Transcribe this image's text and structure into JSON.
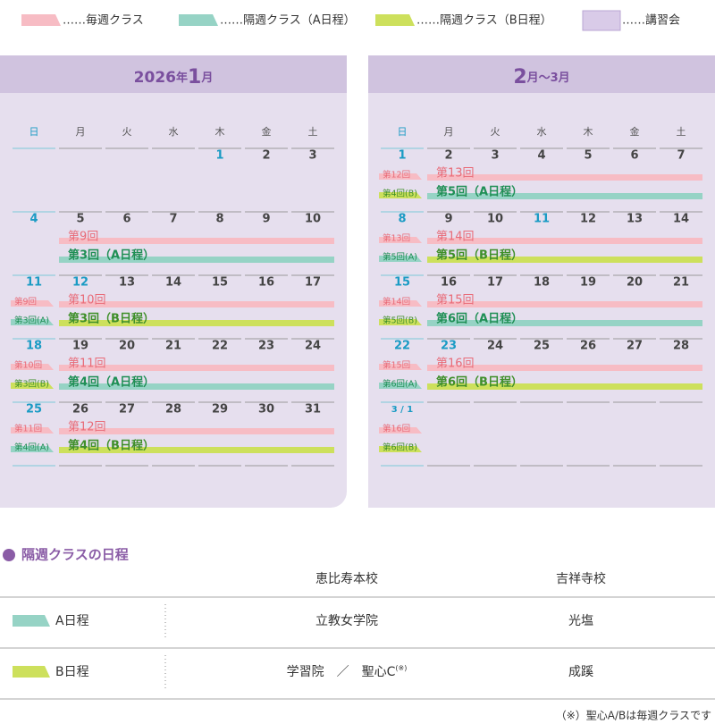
{
  "legend": [
    {
      "label": "……毎週クラス",
      "type": "weekly"
    },
    {
      "label": "……隔週クラス（A日程）",
      "type": "A"
    },
    {
      "label": "……隔週クラス（B日程）",
      "type": "B"
    },
    {
      "label": "……講習会",
      "type": "course"
    }
  ],
  "calendars": [
    {
      "title": [
        "2026",
        "年",
        "1",
        "月"
      ],
      "weekdays": [
        "日",
        "月",
        "火",
        "水",
        "木",
        "金",
        "土"
      ],
      "holidays": [
        1,
        12
      ],
      "weeks": [
        {
          "days": [
            null,
            null,
            null,
            null,
            1,
            2,
            3
          ],
          "small": [],
          "big": []
        },
        {
          "days": [
            4,
            5,
            6,
            7,
            8,
            9,
            10
          ],
          "small": [],
          "big": [
            {
              "text": "第9回",
              "type": "weekly"
            },
            {
              "text": "第3回（A日程）",
              "type": "A"
            }
          ]
        },
        {
          "days": [
            11,
            12,
            13,
            14,
            15,
            16,
            17
          ],
          "small": [
            {
              "text": "第9回",
              "type": "weekly"
            },
            {
              "text": "第3回(A)",
              "type": "A"
            }
          ],
          "big": [
            {
              "text": "第10回",
              "type": "weekly"
            },
            {
              "text": "第3回（B日程）",
              "type": "B"
            }
          ]
        },
        {
          "days": [
            18,
            19,
            20,
            21,
            22,
            23,
            24
          ],
          "small": [
            {
              "text": "第10回",
              "type": "weekly"
            },
            {
              "text": "第3回(B)",
              "type": "B"
            }
          ],
          "big": [
            {
              "text": "第11回",
              "type": "weekly"
            },
            {
              "text": "第4回（A日程）",
              "type": "A"
            }
          ]
        },
        {
          "days": [
            25,
            26,
            27,
            28,
            29,
            30,
            31
          ],
          "small": [
            {
              "text": "第11回",
              "type": "weekly"
            },
            {
              "text": "第4回(A)",
              "type": "A"
            }
          ],
          "big": [
            {
              "text": "第12回",
              "type": "weekly"
            },
            {
              "text": "第4回（B日程）",
              "type": "B"
            }
          ]
        }
      ]
    },
    {
      "title": [
        "2",
        "月～3月"
      ],
      "weekdays": [
        "日",
        "月",
        "火",
        "水",
        "木",
        "金",
        "土"
      ],
      "holidays": [
        11,
        23
      ],
      "weeks": [
        {
          "days": [
            1,
            2,
            3,
            4,
            5,
            6,
            7
          ],
          "small": [
            {
              "text": "第12回",
              "type": "weekly"
            },
            {
              "text": "第4回(B)",
              "type": "B"
            }
          ],
          "big": [
            {
              "text": "第13回",
              "type": "weekly"
            },
            {
              "text": "第5回（A日程）",
              "type": "A"
            }
          ]
        },
        {
          "days": [
            8,
            9,
            10,
            11,
            12,
            13,
            14
          ],
          "small": [
            {
              "text": "第13回",
              "type": "weekly"
            },
            {
              "text": "第5回(A)",
              "type": "A"
            }
          ],
          "big": [
            {
              "text": "第14回",
              "type": "weekly"
            },
            {
              "text": "第5回（B日程）",
              "type": "B"
            }
          ]
        },
        {
          "days": [
            15,
            16,
            17,
            18,
            19,
            20,
            21
          ],
          "small": [
            {
              "text": "第14回",
              "type": "weekly"
            },
            {
              "text": "第5回(B)",
              "type": "B"
            }
          ],
          "big": [
            {
              "text": "第15回",
              "type": "weekly"
            },
            {
              "text": "第6回（A日程）",
              "type": "A"
            }
          ]
        },
        {
          "days": [
            22,
            23,
            24,
            25,
            26,
            27,
            28
          ],
          "small": [
            {
              "text": "第15回",
              "type": "weekly"
            },
            {
              "text": "第6回(A)",
              "type": "A"
            }
          ],
          "big": [
            {
              "text": "第16回",
              "type": "weekly"
            },
            {
              "text": "第6回（B日程）",
              "type": "B"
            }
          ]
        },
        {
          "days": [
            "3 / 1",
            null,
            null,
            null,
            null,
            null,
            null
          ],
          "small": [
            {
              "text": "第16回",
              "type": "weekly"
            },
            {
              "text": "第6回(B)",
              "type": "B"
            }
          ],
          "big": []
        }
      ]
    }
  ],
  "schedule": {
    "heading": "隔週クラスの日程",
    "columns": [
      "恵比寿本校",
      "吉祥寺校"
    ],
    "rows": [
      {
        "label": "A日程",
        "type": "A",
        "cells": [
          "立教女学院",
          "光塩"
        ]
      },
      {
        "label": "B日程",
        "type": "B",
        "cells": [
          "学習院　／　聖心C",
          "成蹊"
        ],
        "note_mark": "(※)"
      }
    ],
    "footnote": "（※）聖心A/Bは毎週クラスです"
  }
}
